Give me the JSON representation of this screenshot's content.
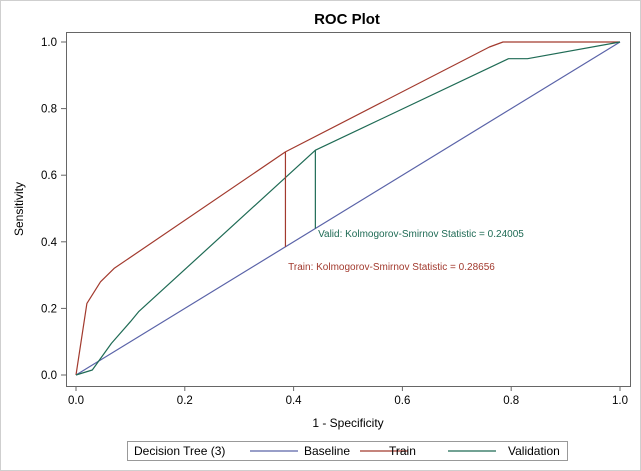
{
  "chart_data": {
    "type": "line",
    "title": "ROC Plot",
    "xlabel": "1 - Specificity",
    "ylabel": "Sensitivity",
    "xlim": [
      0,
      1
    ],
    "ylim": [
      0,
      1
    ],
    "xticks": [
      "0.0",
      "0.2",
      "0.4",
      "0.6",
      "0.8",
      "1.0"
    ],
    "yticks": [
      "0.0",
      "0.2",
      "0.4",
      "0.6",
      "0.8",
      "1.0"
    ],
    "grid": false,
    "legend_position": "bottom",
    "legend_title": "Decision Tree (3)",
    "series": [
      {
        "name": "Baseline",
        "color": "#5a63a8",
        "points": [
          [
            0.0,
            0.0
          ],
          [
            1.0,
            1.0
          ]
        ]
      },
      {
        "name": "Train",
        "color": "#a23a2e",
        "points": [
          [
            0.0,
            0.0
          ],
          [
            0.02,
            0.215
          ],
          [
            0.045,
            0.28
          ],
          [
            0.07,
            0.32
          ],
          [
            0.385,
            0.67
          ],
          [
            0.76,
            0.985
          ],
          [
            0.785,
            1.0
          ],
          [
            1.0,
            1.0
          ]
        ]
      },
      {
        "name": "Validation",
        "color": "#1f6b55",
        "points": [
          [
            0.0,
            0.0
          ],
          [
            0.03,
            0.015
          ],
          [
            0.065,
            0.095
          ],
          [
            0.1,
            0.16
          ],
          [
            0.115,
            0.19
          ],
          [
            0.44,
            0.675
          ],
          [
            0.795,
            0.95
          ],
          [
            0.83,
            0.95
          ],
          [
            1.0,
            1.0
          ]
        ]
      }
    ],
    "ks_lines": [
      {
        "series": "Train",
        "x": 0.385,
        "y_low": 0.385,
        "y_high": 0.67,
        "color": "#a23a2e"
      },
      {
        "series": "Validation",
        "x": 0.44,
        "y_low": 0.44,
        "y_high": 0.675,
        "color": "#1f6b55"
      }
    ],
    "annotations": [
      {
        "name": "valid-ks-annotation",
        "text": "Valid: Kolmogorov-Smirnov Statistic = 0.24005",
        "x": 0.445,
        "y": 0.415,
        "color": "#1f6b55"
      },
      {
        "name": "train-ks-annotation",
        "text": "Train: Kolmogorov-Smirnov Statistic = 0.28656",
        "x": 0.39,
        "y": 0.315,
        "color": "#a23a2e"
      }
    ]
  }
}
